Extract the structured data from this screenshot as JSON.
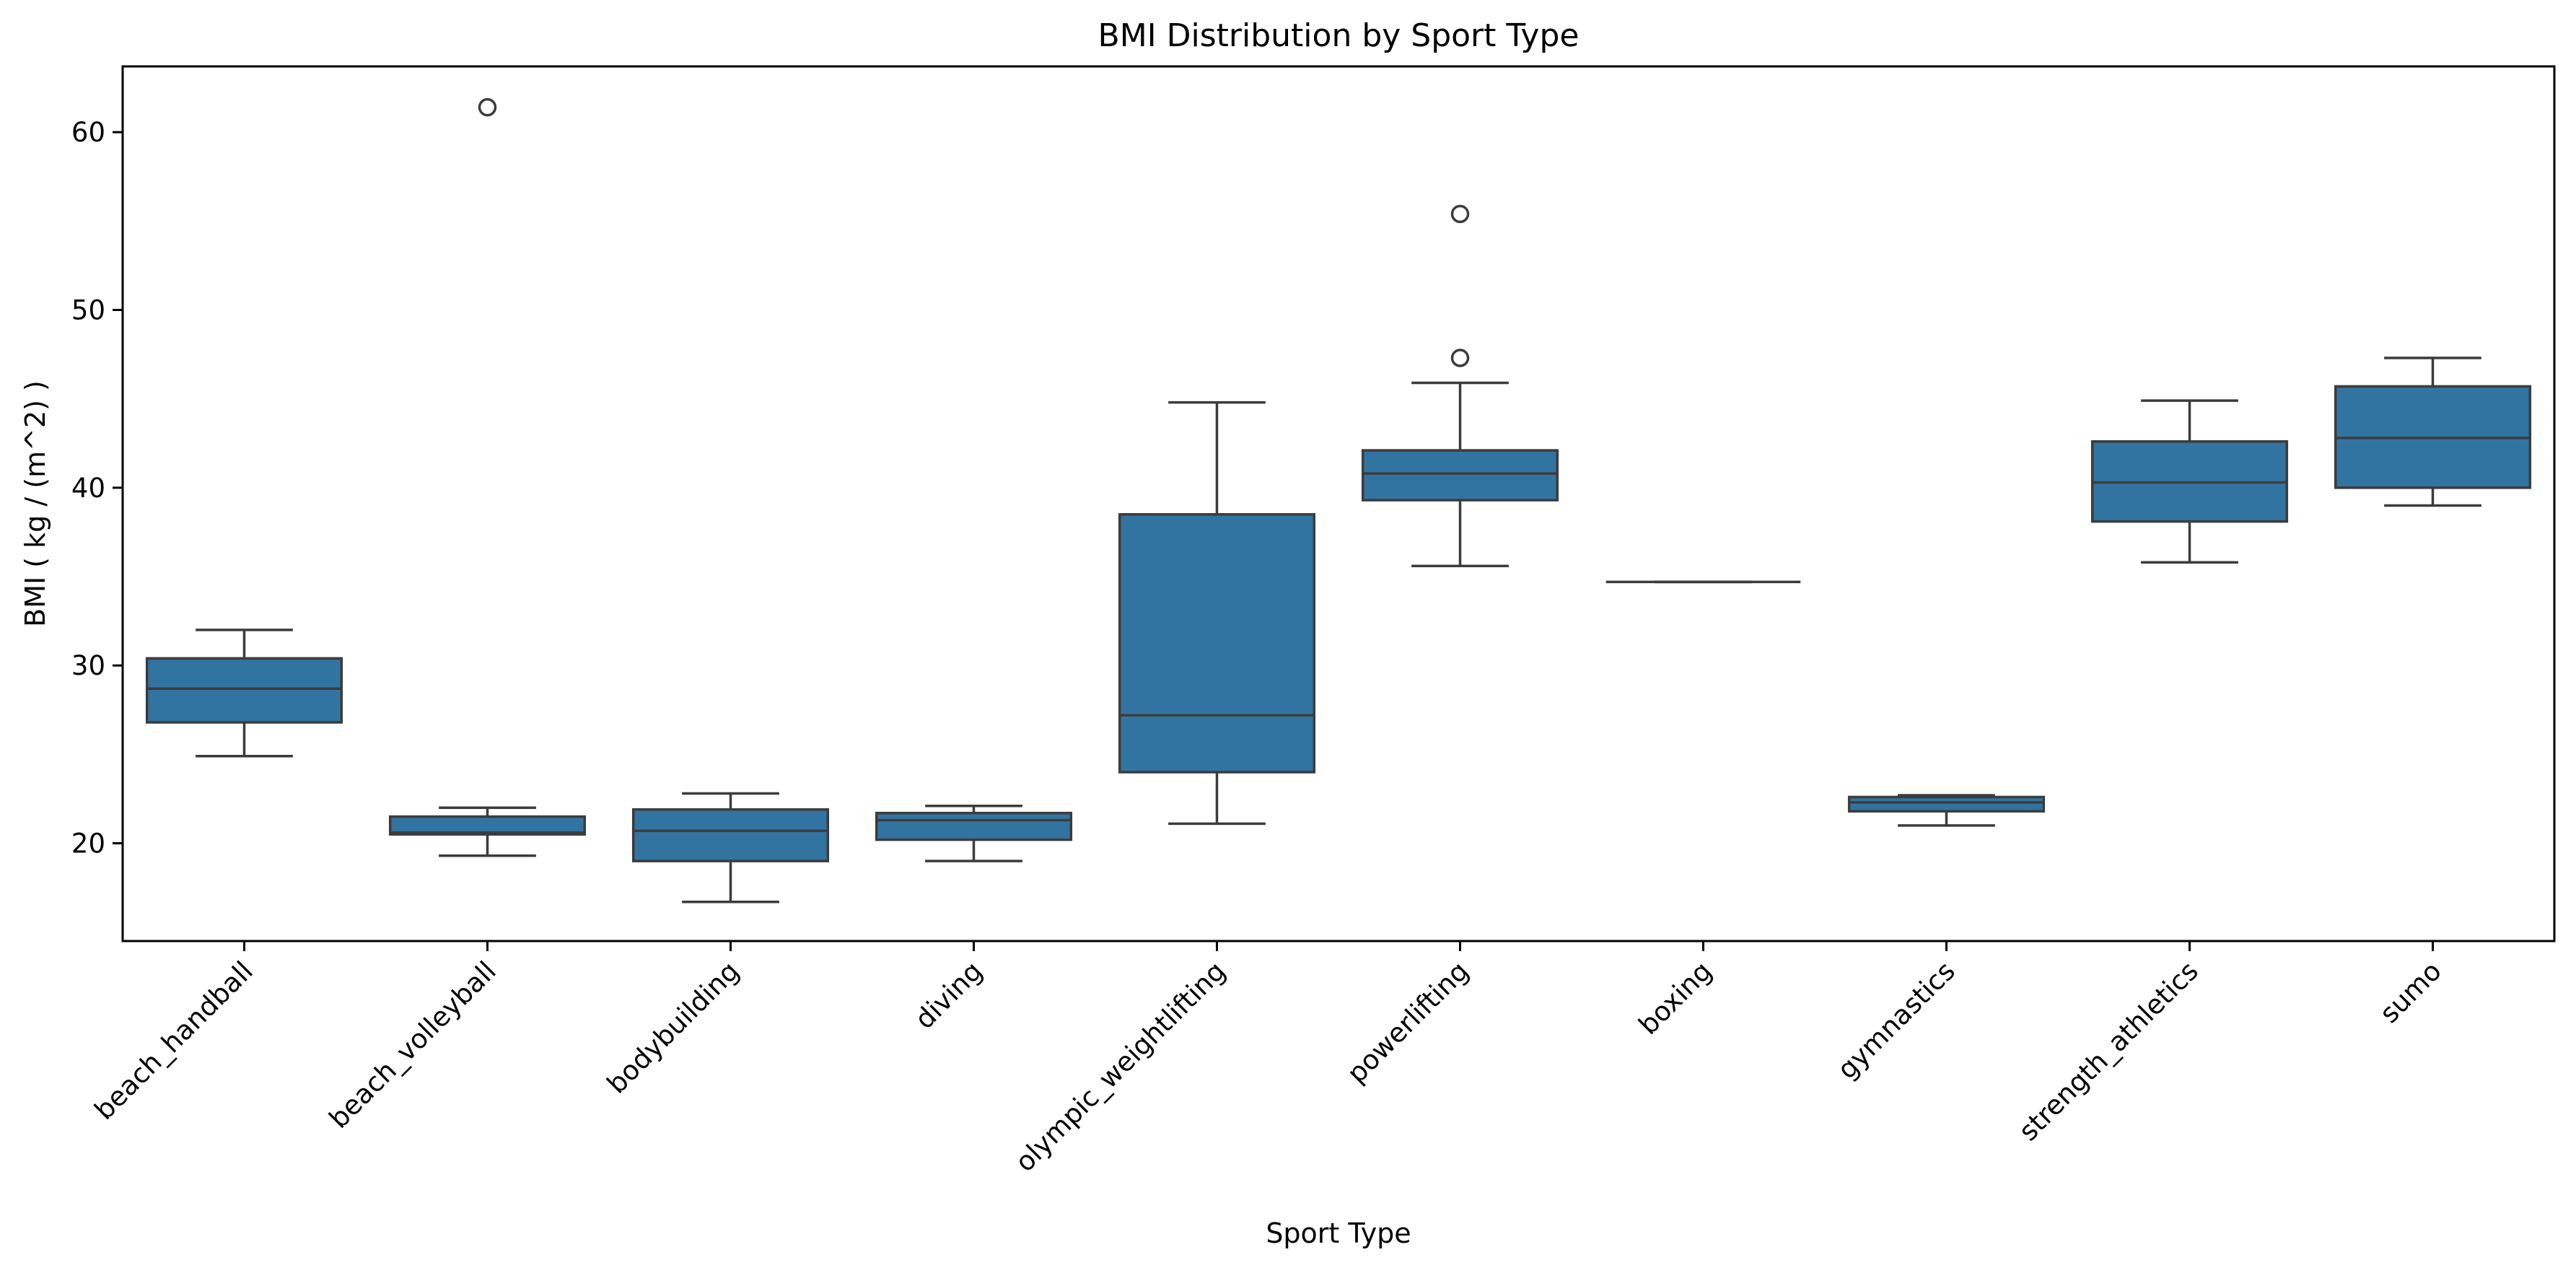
{
  "chart_data": {
    "type": "box",
    "title": "BMI Distribution by Sport Type",
    "xlabel": "Sport Type",
    "ylabel": "BMI ( kg / (m^2) )",
    "ylim": [
      14.5,
      63.7
    ],
    "yticks": [
      20,
      30,
      40,
      50,
      60
    ],
    "grid": false,
    "box_color": "#3274a1",
    "line_color": "#3c3c3c",
    "categories": [
      "beach_handball",
      "beach_volleyball",
      "bodybuilding",
      "diving",
      "olympic_weightlifting",
      "powerlifting",
      "boxing",
      "gymnastics",
      "strength_athletics",
      "sumo"
    ],
    "boxes": [
      {
        "whislo": 24.9,
        "q1": 26.8,
        "med": 28.7,
        "q3": 30.4,
        "whishi": 32.0,
        "fliers": []
      },
      {
        "whislo": 19.3,
        "q1": 20.5,
        "med": 20.6,
        "q3": 21.5,
        "whishi": 22.0,
        "fliers": [
          61.4
        ]
      },
      {
        "whislo": 16.7,
        "q1": 19.0,
        "med": 20.7,
        "q3": 21.9,
        "whishi": 22.8,
        "fliers": []
      },
      {
        "whislo": 19.0,
        "q1": 20.2,
        "med": 21.3,
        "q3": 21.7,
        "whishi": 22.1,
        "fliers": []
      },
      {
        "whislo": 21.1,
        "q1": 24.0,
        "med": 27.2,
        "q3": 38.5,
        "whishi": 44.8,
        "fliers": []
      },
      {
        "whislo": 35.6,
        "q1": 39.3,
        "med": 40.8,
        "q3": 42.1,
        "whishi": 45.9,
        "fliers": [
          47.3,
          55.4
        ]
      },
      {
        "whislo": 34.7,
        "q1": 34.7,
        "med": 34.7,
        "q3": 34.7,
        "whishi": 34.7,
        "fliers": []
      },
      {
        "whislo": 21.0,
        "q1": 21.8,
        "med": 22.3,
        "q3": 22.6,
        "whishi": 22.7,
        "fliers": []
      },
      {
        "whislo": 35.8,
        "q1": 38.1,
        "med": 40.3,
        "q3": 42.6,
        "whishi": 44.9,
        "fliers": []
      },
      {
        "whislo": 39.0,
        "q1": 40.0,
        "med": 42.8,
        "q3": 45.7,
        "whishi": 47.3,
        "fliers": []
      }
    ]
  }
}
